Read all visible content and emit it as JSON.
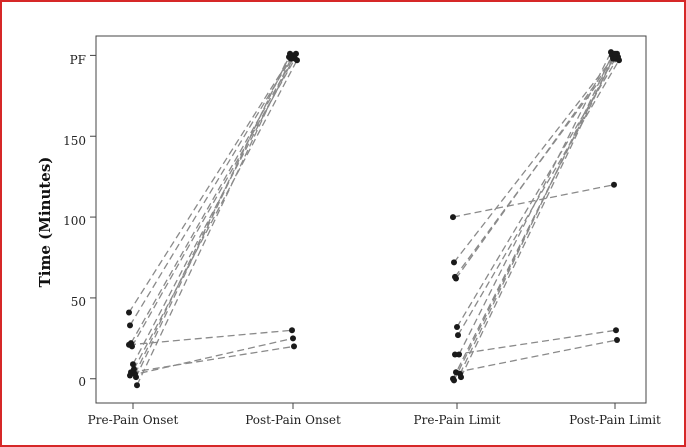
{
  "chart_data": {
    "type": "scatter",
    "ylabel": "Time (Minutes)",
    "categories": [
      "Pre-Pain Onset",
      "Post-Pain Onset",
      "Pre-Pain Limit",
      "Post-Pain Limit"
    ],
    "y_ticks": [
      {
        "value": 0,
        "label": "0"
      },
      {
        "value": 50,
        "label": "50"
      },
      {
        "value": 100,
        "label": "100"
      },
      {
        "value": 150,
        "label": "150"
      },
      {
        "value": 200,
        "label": "PF"
      }
    ],
    "ylim": [
      -15,
      212
    ],
    "grid": false,
    "colors": {
      "points": "#1a1a1a",
      "lines": "#8a8a8a",
      "frame": "#d62828",
      "axes": "#444444"
    },
    "pain_onset_pairs": [
      [
        41,
        200
      ],
      [
        33,
        200
      ],
      [
        22,
        199
      ],
      [
        20,
        198
      ],
      [
        9,
        201
      ],
      [
        6,
        197
      ],
      [
        3,
        199
      ],
      [
        1,
        201
      ],
      [
        -4,
        198
      ],
      [
        21,
        30
      ],
      [
        2,
        25
      ],
      [
        4,
        20
      ]
    ],
    "pain_limit_pairs": [
      [
        100,
        120
      ],
      [
        72,
        200
      ],
      [
        63,
        198
      ],
      [
        62,
        201
      ],
      [
        32,
        199
      ],
      [
        27,
        197
      ],
      [
        15,
        202
      ],
      [
        3,
        200
      ],
      [
        1,
        198
      ],
      [
        0,
        199
      ],
      [
        -1,
        201
      ],
      [
        15,
        30
      ],
      [
        4,
        24
      ]
    ]
  }
}
